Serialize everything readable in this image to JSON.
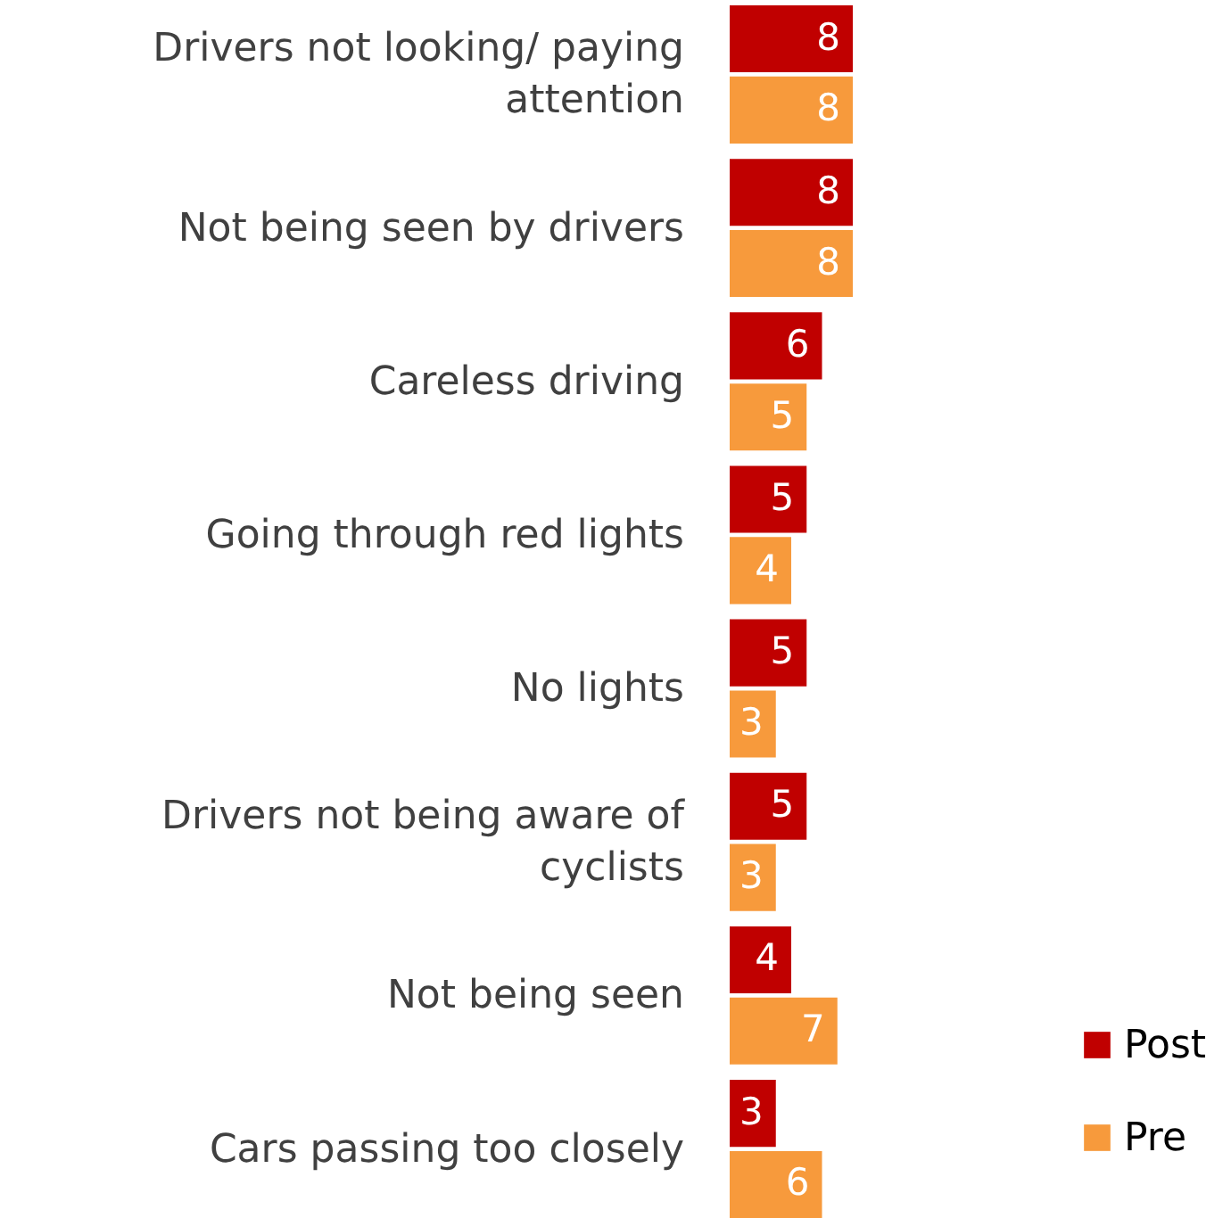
{
  "chart_data": {
    "type": "bar",
    "orientation": "horizontal",
    "categories": [
      "Drivers not looking/ paying attention",
      "Not being seen by drivers",
      "Careless driving",
      "Going through red lights",
      "No lights",
      "Drivers not being aware of cyclists",
      "Not being seen",
      "Cars passing too closely"
    ],
    "series": [
      {
        "name": "Post",
        "color": "#c00000",
        "values": [
          8,
          8,
          6,
          5,
          5,
          5,
          4,
          3
        ]
      },
      {
        "name": "Pre",
        "color": "#f79a3c",
        "values": [
          8,
          8,
          5,
          4,
          3,
          3,
          7,
          6
        ]
      }
    ],
    "data_labels": true,
    "legend": "bottom right",
    "tick_labels": "y"
  }
}
